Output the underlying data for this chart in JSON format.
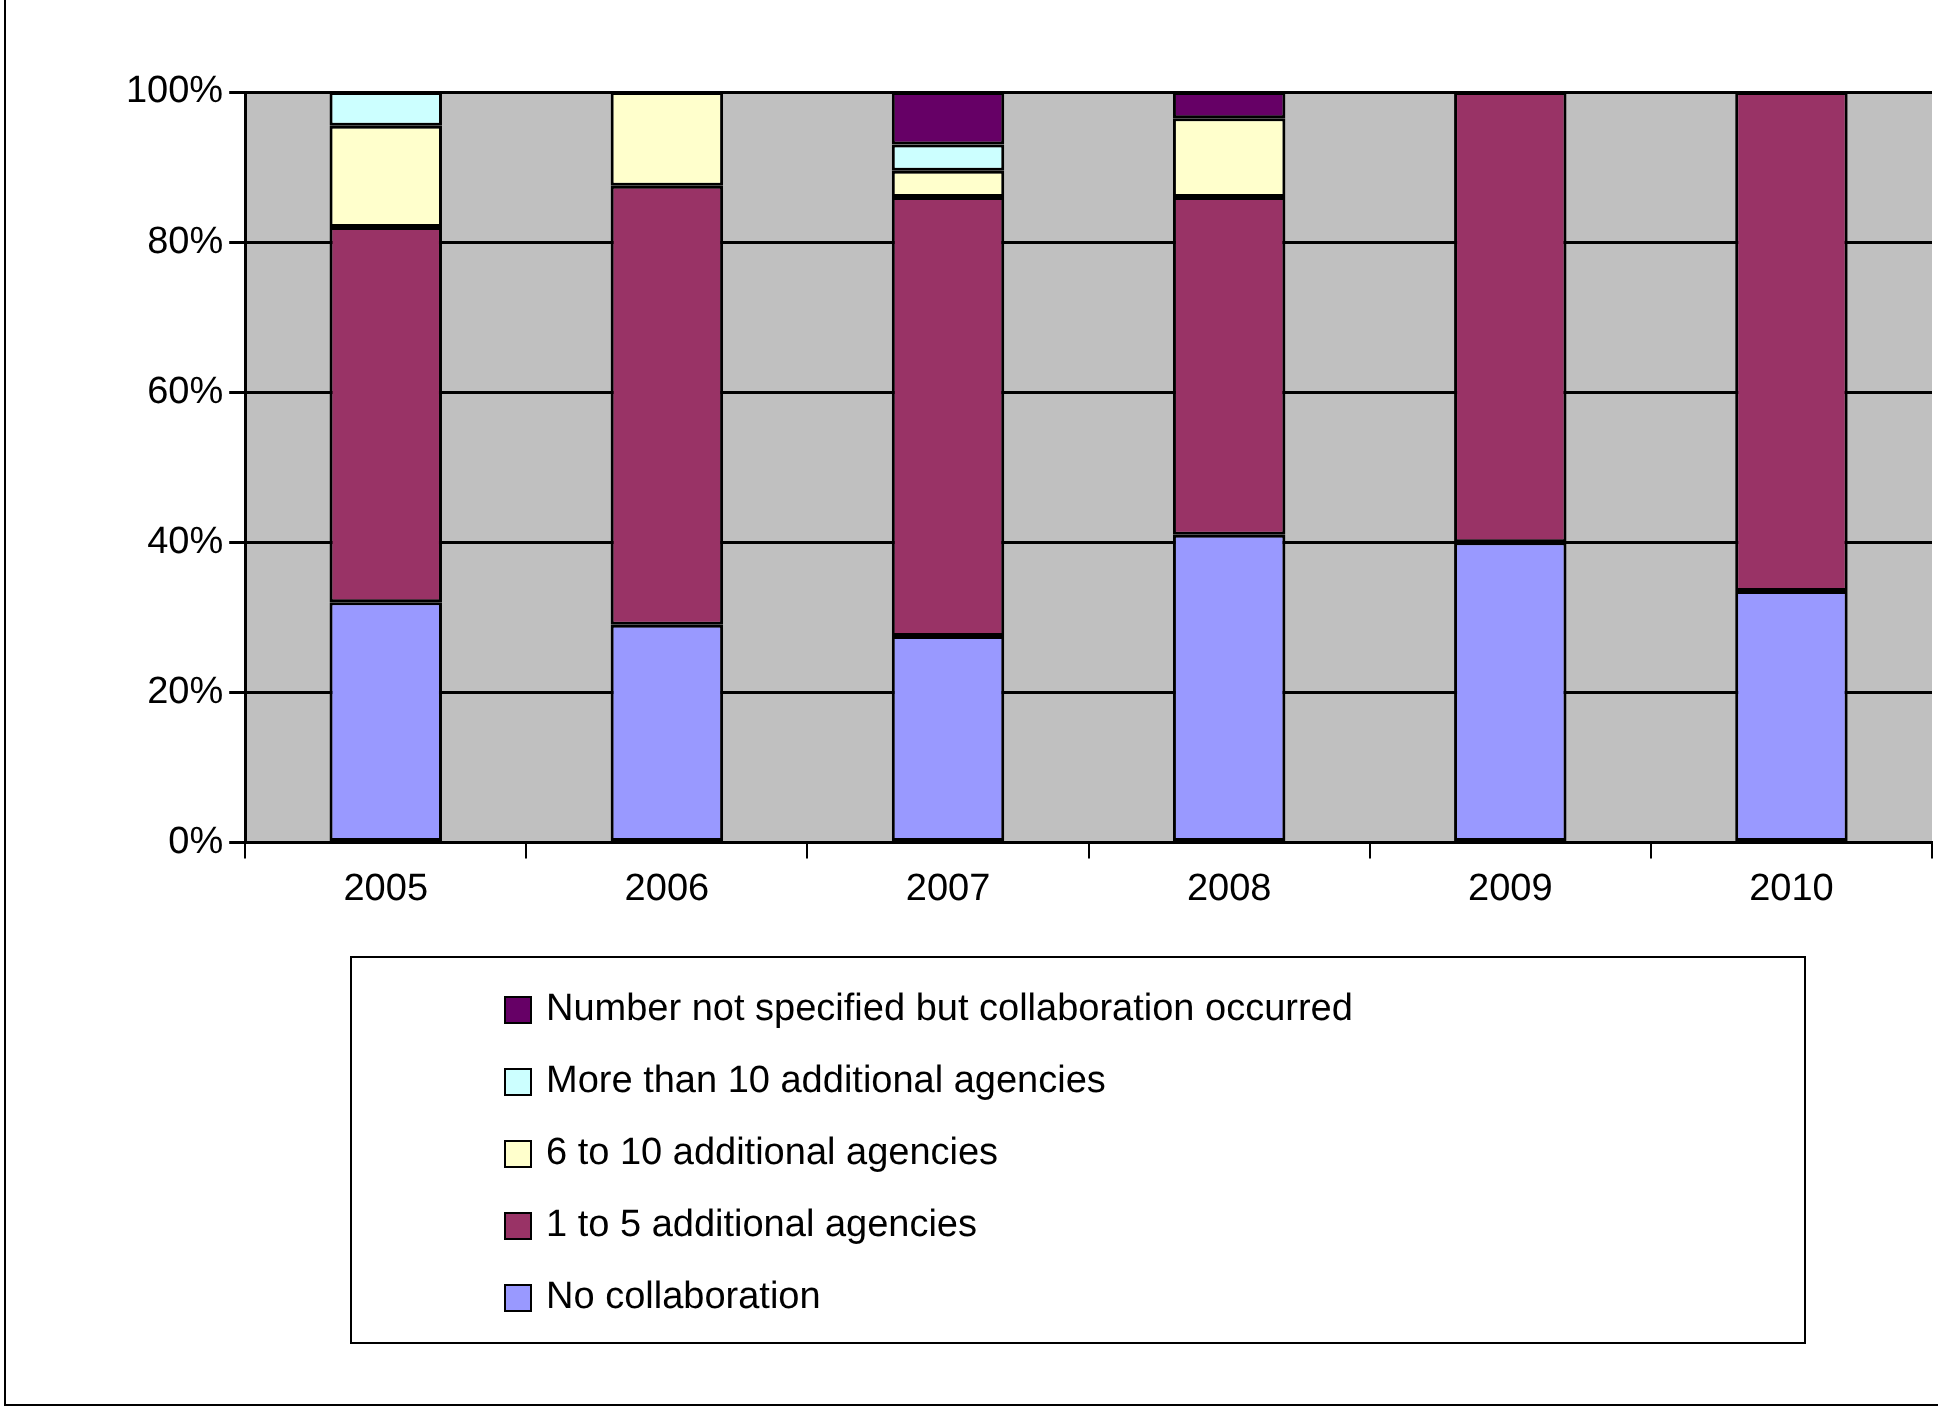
{
  "chart_data": {
    "type": "bar",
    "stacked": true,
    "categories": [
      "2005",
      "2006",
      "2007",
      "2008",
      "2009",
      "2010"
    ],
    "series": [
      {
        "name": "No collaboration",
        "color": "#9999ff",
        "values": [
          32,
          29,
          27.5,
          41,
          40,
          33.5
        ]
      },
      {
        "name": "1 to 5 additional agencies",
        "color": "#993366",
        "values": [
          50,
          58.5,
          58.5,
          45,
          60,
          66.5
        ]
      },
      {
        "name": "6 to 10 additional agencies",
        "color": "#ffffcc",
        "values": [
          13.5,
          12.5,
          3.5,
          10.5,
          0,
          0
        ]
      },
      {
        "name": "More than 10 additional agencies",
        "color": "#ccffff",
        "values": [
          4.5,
          0,
          3.5,
          0,
          0,
          0
        ]
      },
      {
        "name": "Number not specified but collaboration occurred",
        "color": "#660066",
        "values": [
          0,
          0,
          7,
          3.5,
          0,
          0
        ]
      }
    ],
    "ylim": [
      0,
      100
    ],
    "yticks": [
      {
        "value": 0,
        "label": "0%"
      },
      {
        "value": 20,
        "label": "20%"
      },
      {
        "value": 40,
        "label": "40%"
      },
      {
        "value": 60,
        "label": "60%"
      },
      {
        "value": 80,
        "label": "80%"
      },
      {
        "value": 100,
        "label": "100%"
      }
    ],
    "grid": "y",
    "legend": "bottom"
  }
}
